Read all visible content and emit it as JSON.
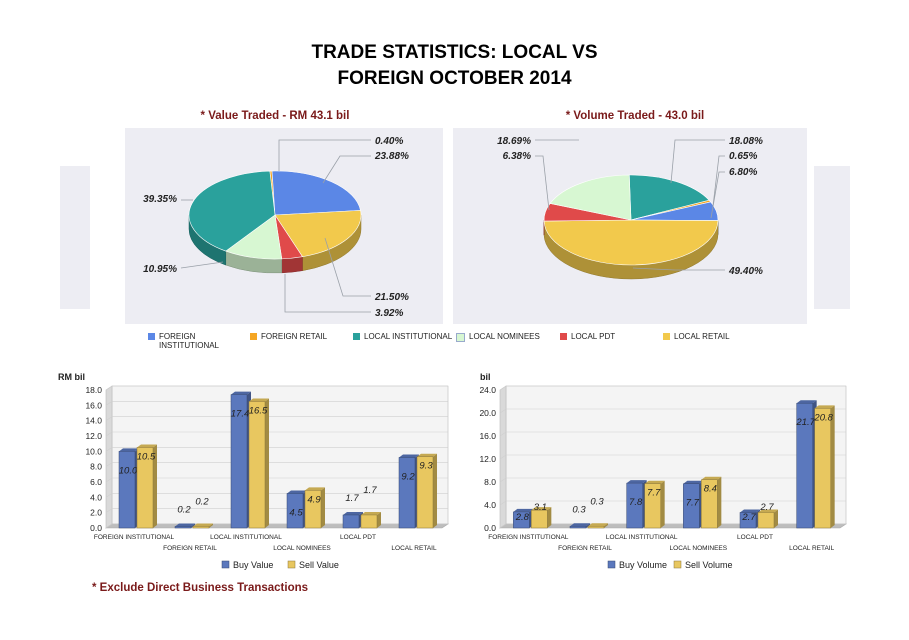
{
  "title_line1": "TRADE STATISTICS: LOCAL VS",
  "title_line2": "FOREIGN OCTOBER 2014",
  "value_subtitle": "* Value Traded - RM 43.1 bil",
  "volume_subtitle": "* Volume Traded -  43.0 bil",
  "footnote": "* Exclude Direct Business Transactions",
  "colors": {
    "foreign_institutional": "#5b87e6",
    "foreign_retail": "#f5a623",
    "local_institutional": "#2aa19c",
    "local_nominees": "#d7f7d2",
    "local_pdt": "#e04a4a",
    "local_retail": "#f2c94c",
    "buy": "#5b78bd",
    "sell": "#e8c760"
  },
  "legend": [
    {
      "label": "FOREIGN INSTITUTIONAL",
      "color": "#5b87e6"
    },
    {
      "label": "FOREIGN RETAIL",
      "color": "#f5a623"
    },
    {
      "label": "LOCAL INSTITUTIONAL",
      "color": "#2aa19c"
    },
    {
      "label": "LOCAL NOMINEES",
      "color": "#d7f7d2"
    },
    {
      "label": "LOCAL PDT",
      "color": "#e04a4a"
    },
    {
      "label": "LOCAL RETAIL",
      "color": "#f2c94c"
    }
  ],
  "chart_data": [
    {
      "type": "pie",
      "title": "* Value Traded - RM 43.1 bil",
      "categories": [
        "FOREIGN INSTITUTIONAL",
        "FOREIGN RETAIL",
        "LOCAL INSTITUTIONAL",
        "LOCAL NOMINEES",
        "LOCAL PDT",
        "LOCAL RETAIL"
      ],
      "values": [
        23.88,
        0.4,
        39.35,
        10.95,
        3.92,
        21.5
      ],
      "labels": [
        "23.88%",
        "0.40%",
        "39.35%",
        "10.95%",
        "3.92%",
        "21.50%"
      ]
    },
    {
      "type": "pie",
      "title": "* Volume Traded -  43.0 bil",
      "categories": [
        "FOREIGN INSTITUTIONAL",
        "FOREIGN RETAIL",
        "LOCAL INSTITUTIONAL",
        "LOCAL NOMINEES",
        "LOCAL PDT",
        "LOCAL RETAIL"
      ],
      "values": [
        6.8,
        0.65,
        18.08,
        18.69,
        6.38,
        49.4
      ],
      "labels": [
        "6.80%",
        "0.65%",
        "18.08%",
        "18.69%",
        "6.38%",
        "49.40%"
      ]
    },
    {
      "type": "bar",
      "ylabel": "RM bil",
      "ylim": [
        0,
        18
      ],
      "yticks": [
        "0.0",
        "2.0",
        "4.0",
        "6.0",
        "8.0",
        "10.0",
        "12.0",
        "14.0",
        "16.0",
        "18.0"
      ],
      "categories": [
        "FOREIGN INSTITUTIONAL",
        "FOREIGN RETAIL",
        "LOCAL INSTITUTIONAL",
        "LOCAL NOMINEES",
        "LOCAL PDT",
        "LOCAL RETAIL"
      ],
      "series": [
        {
          "name": "Buy Value",
          "values": [
            10.0,
            0.2,
            17.4,
            4.5,
            1.7,
            9.2
          ],
          "labels": [
            "10.0",
            "0.2",
            "17.4",
            "4.5",
            "1.7",
            "9.2"
          ]
        },
        {
          "name": "Sell Value",
          "values": [
            10.5,
            0.2,
            16.5,
            4.9,
            1.7,
            9.3
          ],
          "labels": [
            "10.5",
            "0.2",
            "16.5",
            "4.9",
            "1.7",
            "9.3"
          ]
        }
      ]
    },
    {
      "type": "bar",
      "ylabel": "bil",
      "ylim": [
        0,
        24
      ],
      "yticks": [
        "0.0",
        "4.0",
        "8.0",
        "12.0",
        "16.0",
        "20.0",
        "24.0"
      ],
      "categories": [
        "FOREIGN INSTITUTIONAL",
        "FOREIGN RETAIL",
        "LOCAL INSTITUTIONAL",
        "LOCAL NOMINEES",
        "LOCAL PDT",
        "LOCAL RETAIL"
      ],
      "series": [
        {
          "name": "Buy Volume",
          "values": [
            2.8,
            0.3,
            7.8,
            7.7,
            2.7,
            21.7
          ],
          "labels": [
            "2.8",
            "0.3",
            "7.8",
            "7.7",
            "2.7",
            "21.7"
          ]
        },
        {
          "name": "Sell Volume",
          "values": [
            3.1,
            0.3,
            7.7,
            8.4,
            2.7,
            20.8
          ],
          "labels": [
            "3.1",
            "0.3",
            "7.7",
            "8.4",
            "2.7",
            "20.8"
          ]
        }
      ]
    }
  ]
}
